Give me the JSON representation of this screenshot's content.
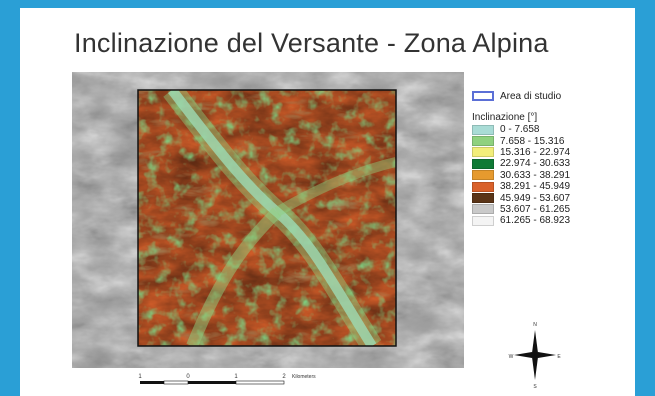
{
  "title": "Inclinazione del Versante - Zona Alpina",
  "legend": {
    "study_area_label": "Area di studio",
    "heading": "Inclinazione [°]",
    "classes": [
      {
        "label": "0 - 7.658",
        "color": "#a9dcd6"
      },
      {
        "label": "7.658 - 15.316",
        "color": "#8fd17f"
      },
      {
        "label": "15.316 - 22.974",
        "color": "#f2ee7a"
      },
      {
        "label": "22.974 - 30.633",
        "color": "#0f7a35"
      },
      {
        "label": "30.633 - 38.291",
        "color": "#e69a2e"
      },
      {
        "label": "38.291 - 45.949",
        "color": "#d9612b"
      },
      {
        "label": "45.949 - 53.607",
        "color": "#5a3417"
      },
      {
        "label": "53.607 - 61.265",
        "color": "#c9c9c9"
      },
      {
        "label": "61.265 - 68.923",
        "color": "#f4f4f4"
      }
    ]
  },
  "scalebar": {
    "ticks": [
      "1",
      "0",
      "1",
      "2"
    ],
    "unit": "Kilometers"
  },
  "compass": {
    "n": "N",
    "s": "S",
    "e": "E",
    "w": "W"
  },
  "colors": {
    "border": "#2a9fd6",
    "study_area": "#5b6fd6"
  }
}
